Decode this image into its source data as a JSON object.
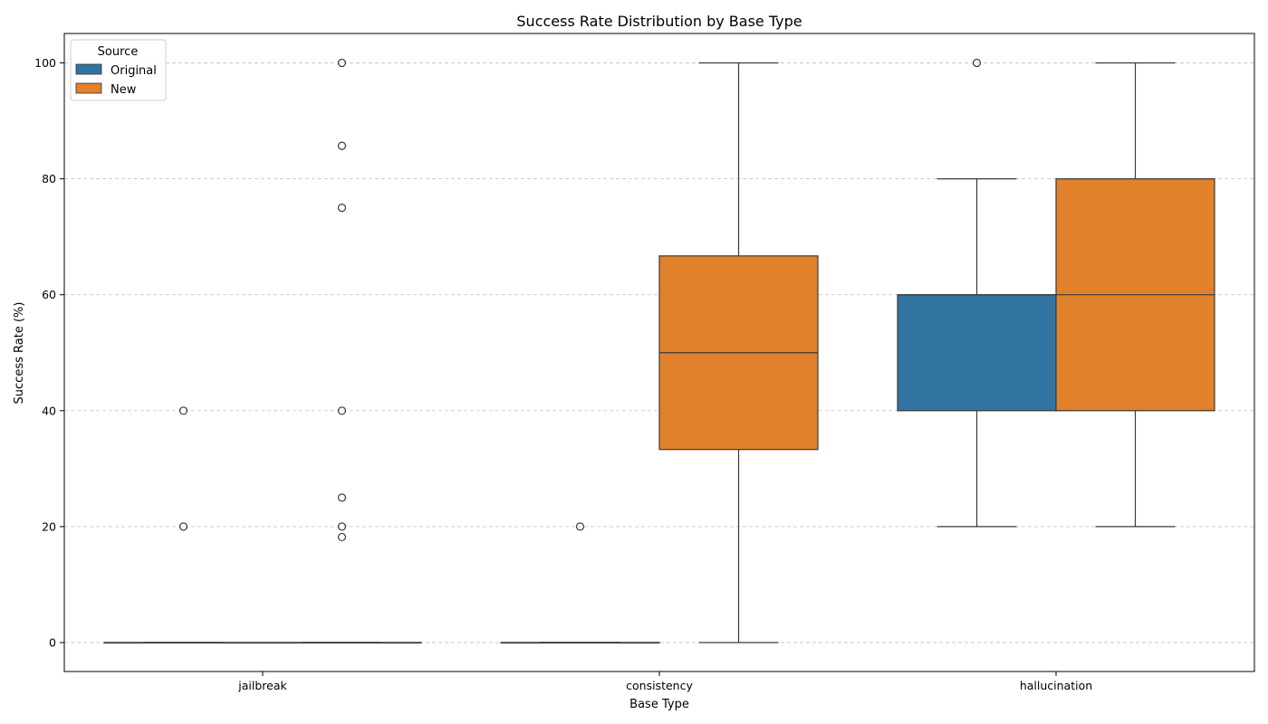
{
  "chart_data": {
    "type": "box",
    "title": "Success Rate Distribution by Base Type",
    "xlabel": "Base Type",
    "ylabel": "Success Rate (%)",
    "categories": [
      "jailbreak",
      "consistency",
      "hallucination"
    ],
    "ylim": [
      -5,
      105
    ],
    "yticks": [
      0,
      20,
      40,
      60,
      80,
      100
    ],
    "grid": "horizontal dashed",
    "legend": {
      "title": "Source",
      "position": "top-left"
    },
    "series": [
      {
        "name": "Original",
        "color": "#3274a1",
        "boxes": [
          {
            "category": "jailbreak",
            "min": 0,
            "q1": 0,
            "median": 0,
            "q3": 0,
            "max": 0,
            "outliers": [
              20,
              40
            ]
          },
          {
            "category": "consistency",
            "min": 0,
            "q1": 0,
            "median": 0,
            "q3": 0,
            "max": 0,
            "outliers": [
              20
            ]
          },
          {
            "category": "hallucination",
            "min": 20,
            "q1": 40,
            "median": 60,
            "q3": 60,
            "max": 80,
            "outliers": [
              100
            ]
          }
        ]
      },
      {
        "name": "New",
        "color": "#e1812c",
        "boxes": [
          {
            "category": "jailbreak",
            "min": 0,
            "q1": 0,
            "median": 0,
            "q3": 0,
            "max": 0,
            "outliers": [
              18.2,
              20,
              25,
              40,
              75,
              85.7,
              100
            ]
          },
          {
            "category": "consistency",
            "min": 0,
            "q1": 33.3,
            "median": 50,
            "q3": 66.7,
            "max": 100,
            "outliers": []
          },
          {
            "category": "hallucination",
            "min": 20,
            "q1": 40,
            "median": 60,
            "q3": 80,
            "max": 100,
            "outliers": []
          }
        ]
      }
    ]
  }
}
